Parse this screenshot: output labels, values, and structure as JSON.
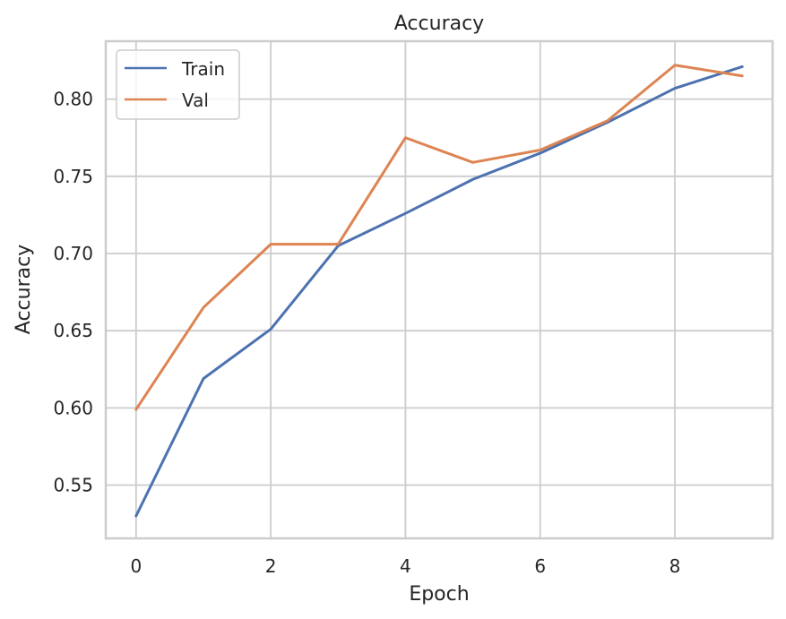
{
  "chart_data": {
    "type": "line",
    "title": "Accuracy",
    "xlabel": "Epoch",
    "ylabel": "Accuracy",
    "xlim": [
      -0.45,
      9.45
    ],
    "ylim": [
      0.5155,
      0.8375
    ],
    "x_ticks": [
      0,
      2,
      4,
      6,
      8
    ],
    "y_ticks": [
      0.55,
      0.6,
      0.65,
      0.7,
      0.75,
      0.8
    ],
    "grid": true,
    "legend_position": "top-left",
    "x": [
      0,
      1,
      2,
      3,
      4,
      5,
      6,
      7,
      8,
      9
    ],
    "series": [
      {
        "name": "Train",
        "color": "#4c72b0",
        "values": [
          0.53,
          0.619,
          0.651,
          0.705,
          0.726,
          0.748,
          0.765,
          0.785,
          0.807,
          0.821
        ]
      },
      {
        "name": "Val",
        "color": "#dd8452",
        "values": [
          0.599,
          0.665,
          0.706,
          0.706,
          0.775,
          0.759,
          0.767,
          0.786,
          0.822,
          0.815
        ]
      }
    ]
  }
}
